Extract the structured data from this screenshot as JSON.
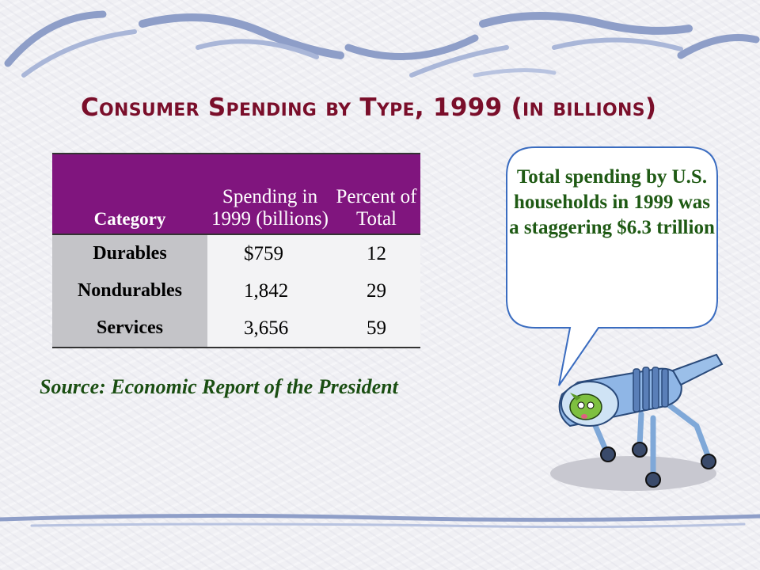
{
  "title": "Consumer Spending by Type, 1999 (in billions)",
  "table": {
    "headers": {
      "category": "Category",
      "spending": "Spending in 1999 (billions)",
      "percent": "Percent of Total"
    },
    "rows": [
      {
        "category": "Durables",
        "spending": "$759",
        "percent": "12"
      },
      {
        "category": "Nondurables",
        "spending": "1,842",
        "percent": "29"
      },
      {
        "category": "Services",
        "spending": "3,656",
        "percent": "59"
      }
    ]
  },
  "source": "Source: Economic Report of the President",
  "callout": "Total spending by U.S. households in 1999 was a staggering $6.3 trillion",
  "colors": {
    "title": "#7a0e2a",
    "header_bg": "#80157e",
    "category_bg": "#c4c4c8",
    "accent_text": "#1f5a14",
    "swoosh": "#8e9ec8"
  }
}
